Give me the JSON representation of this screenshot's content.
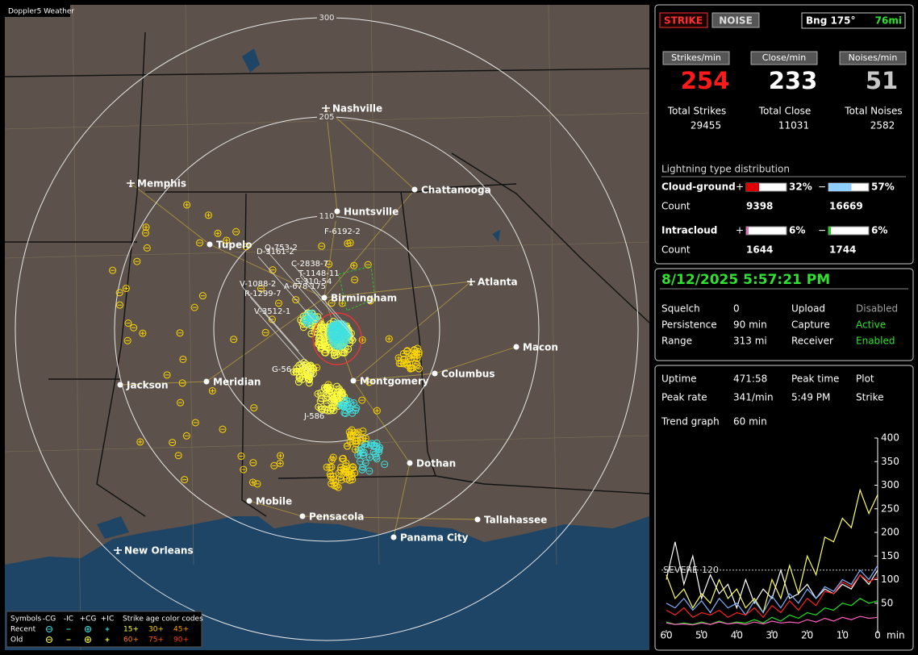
{
  "app_title": "Doppler5 Weather",
  "map": {
    "ring_labels": [
      110,
      205,
      300
    ],
    "cities": [
      "Nashville",
      "Memphis",
      "Chattanooga",
      "Huntsville",
      "Tupelo",
      "Atlanta",
      "Birmingham",
      "Macon",
      "Columbus",
      "Montgomery",
      "Jackson",
      "Meridian",
      "Dothan",
      "Mobile",
      "Pensacola",
      "Tallahassee",
      "Panama City",
      "New Orleans"
    ],
    "storm_labels": [
      "Q-753-2",
      "D-3161-2",
      "F-6192-2",
      "C-2838-7",
      "T-1148-11",
      "S-310-54",
      "V-1088-2",
      "A-678-175",
      "R-1299-7",
      "V-3512-1",
      "G-56",
      "J-586"
    ],
    "legend": {
      "symbols_title": "Symbols",
      "symbol_names": [
        "-CG",
        "-IC",
        "+CG",
        "+IC"
      ],
      "age_title": "Strike age color codes",
      "rows": [
        {
          "label": "Recent",
          "ages": [
            "15+",
            "30+",
            "45+"
          ],
          "colors": [
            "#ffff40",
            "#ffd000",
            "#ff9a00"
          ],
          "symbol_color": "#40e0e0"
        },
        {
          "label": "Old",
          "ages": [
            "60+",
            "75+",
            "90+"
          ],
          "colors": [
            "#ff7a00",
            "#ff5a00",
            "#ff3a00"
          ],
          "symbol_color": "#ffff40"
        }
      ]
    }
  },
  "panel": {
    "mode_buttons": [
      "STRIKE",
      "NOISE"
    ],
    "bearing": "Bng 175°",
    "distance": "76mi",
    "rates": [
      {
        "label": "Strikes/min",
        "value": 254,
        "color": "#ff1a1a",
        "total_label": "Total Strikes",
        "total": 29455
      },
      {
        "label": "Close/min",
        "value": 233,
        "color": "#ffffff",
        "total_label": "Total Close",
        "total": 11031
      },
      {
        "label": "Noises/min",
        "value": 51,
        "color": "#c8c8c8",
        "total_label": "Total Noises",
        "total": 2582
      }
    ],
    "distribution": {
      "title": "Lightning type distribution",
      "count_label": "Count",
      "rows": [
        {
          "label": "Cloud-ground",
          "signs": [
            "+",
            "−"
          ],
          "values": [
            32,
            57
          ],
          "value_labels": [
            "32%",
            "57%"
          ],
          "colors": [
            "#e00000",
            "#8ecfff"
          ],
          "counts": [
            9398,
            16669
          ]
        },
        {
          "label": "Intracloud",
          "signs": [
            "+",
            "−"
          ],
          "values": [
            6,
            6
          ],
          "value_labels": [
            "6%",
            "6%"
          ],
          "colors": [
            "#e070b0",
            "#20d020"
          ],
          "counts": [
            1644,
            1744
          ]
        }
      ]
    },
    "datetime": "8/12/2025 5:57:21 PM",
    "status": [
      [
        "Squelch",
        "0",
        "Upload",
        "Disabled"
      ],
      [
        "Persistence",
        "90 min",
        "Capture",
        "Active"
      ],
      [
        "Range",
        "313 mi",
        "Receiver",
        "Enabled"
      ]
    ],
    "status_colors": [
      "#a0a0a0",
      "#30e030",
      "#30e030"
    ],
    "stats": [
      [
        "Uptime",
        "471:58",
        "Peak time",
        "Plot"
      ],
      [
        "Peak rate",
        "341/min",
        "5:49 PM",
        "Strike"
      ]
    ],
    "trend_label": "Trend graph",
    "trend_window": "60 min"
  },
  "trend": {
    "type": "line",
    "x": [
      60,
      57.5,
      55,
      52.5,
      50,
      47.5,
      45,
      42.5,
      40,
      37.5,
      35,
      32.5,
      30,
      27.5,
      25,
      22.5,
      20,
      17.5,
      15,
      12.5,
      10,
      7.5,
      5,
      2.5,
      0
    ],
    "xlim": [
      60,
      0
    ],
    "xticks": [
      60,
      50,
      40,
      30,
      20,
      10,
      0
    ],
    "x_label": "min",
    "ylim": [
      0,
      400
    ],
    "yticks": [
      50,
      100,
      150,
      200,
      250,
      300,
      350,
      400
    ],
    "threshold_label": "SEVERE",
    "threshold": 120,
    "series": [
      {
        "color": "#ffffff",
        "values": [
          100,
          180,
          90,
          150,
          60,
          110,
          70,
          90,
          40,
          100,
          50,
          80,
          60,
          120,
          60,
          70,
          90,
          60,
          80,
          70,
          90,
          80,
          110,
          90,
          120
        ]
      },
      {
        "color": "#ffff60",
        "values": [
          110,
          60,
          80,
          40,
          70,
          50,
          100,
          60,
          80,
          40,
          60,
          30,
          100,
          60,
          130,
          70,
          150,
          110,
          190,
          180,
          230,
          210,
          290,
          240,
          280
        ]
      },
      {
        "color": "#80b0ff",
        "values": [
          50,
          40,
          60,
          35,
          55,
          30,
          60,
          40,
          50,
          25,
          55,
          30,
          65,
          40,
          70,
          50,
          80,
          60,
          85,
          75,
          100,
          90,
          120,
          100,
          130
        ]
      },
      {
        "color": "#ff2020",
        "values": [
          35,
          25,
          40,
          20,
          30,
          25,
          35,
          20,
          30,
          25,
          40,
          20,
          45,
          30,
          55,
          35,
          60,
          45,
          75,
          70,
          95,
          85,
          110,
          95,
          105
        ]
      },
      {
        "color": "#20e020",
        "values": [
          10,
          5,
          8,
          5,
          10,
          5,
          12,
          6,
          10,
          8,
          15,
          8,
          20,
          12,
          25,
          18,
          30,
          25,
          40,
          35,
          50,
          45,
          60,
          50,
          55
        ]
      },
      {
        "color": "#ff60c0",
        "values": [
          8,
          5,
          6,
          4,
          8,
          5,
          10,
          6,
          8,
          5,
          10,
          6,
          12,
          8,
          10,
          8,
          15,
          10,
          18,
          12,
          20,
          15,
          22,
          18,
          20
        ]
      }
    ]
  }
}
